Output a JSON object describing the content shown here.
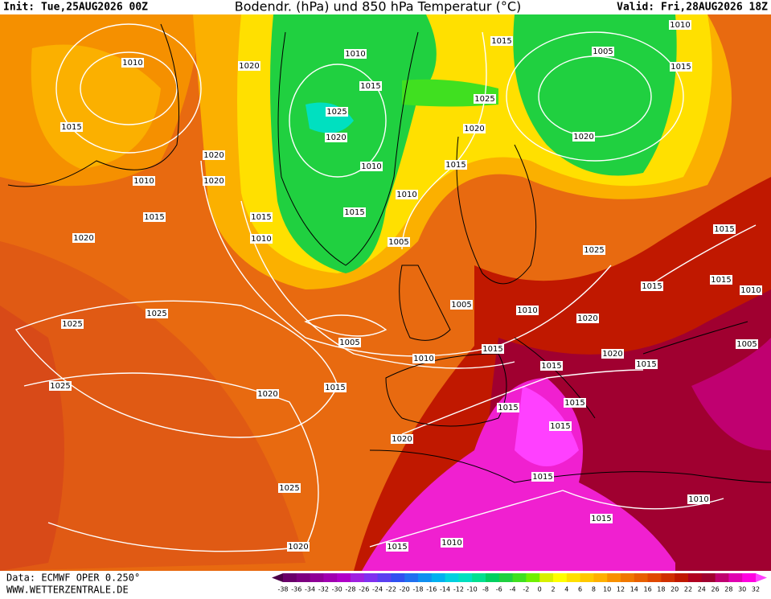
{
  "header": {
    "init": "Init: Tue,25AUG2026 00Z",
    "title": "Bodendr. (hPa) und 850 hPa Temperatur (°C)",
    "valid": "Valid: Fri,28AUG2026 18Z"
  },
  "footer": {
    "data": "Data: ECMWF OPER 0.250°",
    "site": "WWW.WETTERZENTRALE.DE"
  },
  "isobar_labels": [
    1010,
    1015,
    1010,
    1015,
    1020,
    1020,
    1020,
    1020,
    1015,
    1010,
    1025,
    1025,
    1025,
    1020,
    1015,
    1005,
    1010,
    1015,
    1005,
    1005,
    1010,
    1015,
    1010,
    1020,
    1025,
    1015,
    1010,
    1015,
    1025,
    1020,
    1015,
    1005,
    1010,
    1015,
    1020,
    1015,
    1025,
    1015,
    1015,
    1010,
    1010,
    1020,
    1020,
    1015,
    1015,
    1005,
    1015,
    1015,
    1015,
    1020,
    1025,
    1015,
    1010,
    1015,
    1010,
    1015,
    1020
  ],
  "colorbar": {
    "ticks": [
      -38,
      -36,
      -34,
      -32,
      -30,
      -28,
      -26,
      -24,
      -22,
      -20,
      -18,
      -16,
      -14,
      -12,
      -10,
      -8,
      -6,
      -4,
      -2,
      0,
      2,
      4,
      6,
      8,
      10,
      12,
      14,
      16,
      18,
      20,
      22,
      24,
      26,
      28,
      30,
      32
    ],
    "colors": [
      "#4b0048",
      "#6a006a",
      "#7d0080",
      "#8f0096",
      "#a000b0",
      "#b000c8",
      "#a020e0",
      "#8030f0",
      "#5a40f0",
      "#3050f0",
      "#2070f0",
      "#1090f0",
      "#00b0f0",
      "#00d0e0",
      "#00e0c0",
      "#00e090",
      "#00d060",
      "#20d040",
      "#40e020",
      "#70f000",
      "#d8f000",
      "#ffff00",
      "#ffe000",
      "#ffc800",
      "#ffb000",
      "#f89000",
      "#f07800",
      "#e86000",
      "#e04800",
      "#d03000",
      "#c01800",
      "#b00020",
      "#a00030",
      "#c00070",
      "#e000b0",
      "#ff00e0",
      "#ff40ff"
    ]
  }
}
